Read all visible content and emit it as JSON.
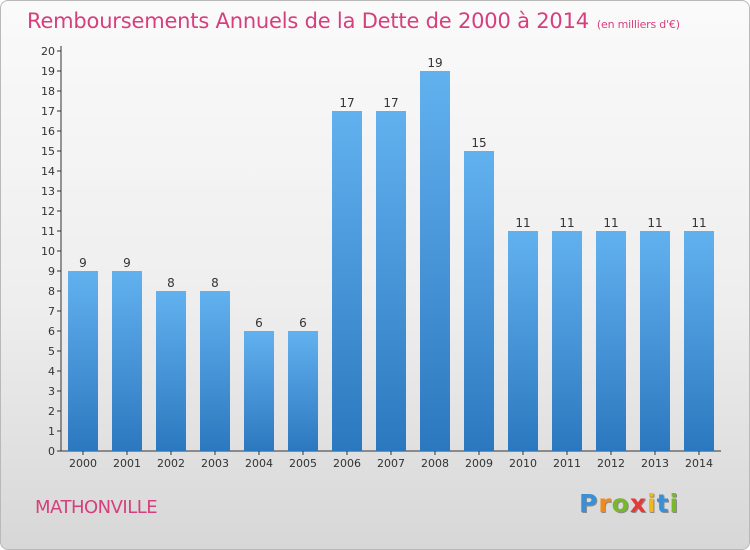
{
  "header": {
    "title": "Remboursements Annuels de la Dette de 2000 à 2014",
    "unit": "(en milliers d'€)"
  },
  "footer": {
    "commune": "MATHONVILLE",
    "logo_text": "Proxiti"
  },
  "colors": {
    "accent": "#d63f7e",
    "bar": "#3f95dc",
    "bar_light": "#62b1ef",
    "bar_dark": "#2c78bf"
  },
  "chart_data": {
    "type": "bar",
    "title": "Remboursements Annuels de la Dette de 2000 à 2014",
    "subtitle": "(en milliers d'€)",
    "categories": [
      "2000",
      "2001",
      "2002",
      "2003",
      "2004",
      "2005",
      "2006",
      "2007",
      "2008",
      "2009",
      "2010",
      "2011",
      "2012",
      "2013",
      "2014"
    ],
    "values": [
      9,
      9,
      8,
      8,
      6,
      6,
      17,
      17,
      19,
      15,
      11,
      11,
      11,
      11,
      11
    ],
    "data_labels": [
      "9",
      "9",
      "8",
      "8",
      "6",
      "6",
      "17",
      "17",
      "19",
      "15",
      "11",
      "11",
      "11",
      "11",
      "11"
    ],
    "yticks": [
      0,
      1,
      2,
      3,
      4,
      5,
      6,
      7,
      8,
      9,
      10,
      11,
      12,
      13,
      14,
      15,
      16,
      17,
      18,
      19,
      20
    ],
    "ylim": [
      0,
      20
    ],
    "xlabel": "",
    "ylabel": "",
    "grid": false,
    "legend": "none"
  }
}
